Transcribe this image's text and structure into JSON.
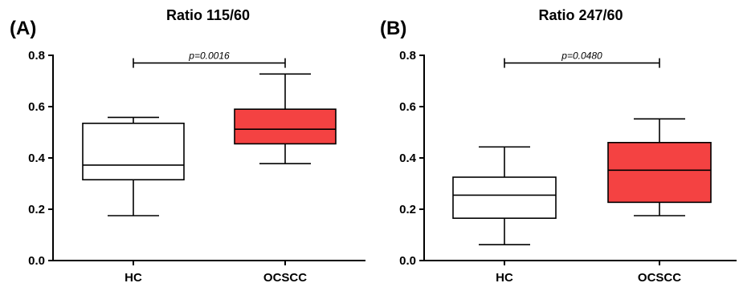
{
  "chart_data": [
    {
      "type": "boxplot",
      "panel_label": "(A)",
      "title": "Ratio 115/60",
      "categories": [
        "HC",
        "OCSCC"
      ],
      "ylim": [
        0,
        0.8
      ],
      "yticks": [
        "0.0",
        "0.2",
        "0.4",
        "0.6",
        "0.8"
      ],
      "boxes": [
        {
          "category": "HC",
          "min": 0.175,
          "q1": 0.315,
          "median": 0.372,
          "q3": 0.535,
          "max": 0.558,
          "color": "#ffffff"
        },
        {
          "category": "OCSCC",
          "min": 0.378,
          "q1": 0.455,
          "median": 0.512,
          "q3": 0.59,
          "max": 0.727,
          "color": "#f44242"
        }
      ],
      "significance": {
        "text": "p=0.0016",
        "y": 0.77
      }
    },
    {
      "type": "boxplot",
      "panel_label": "(B)",
      "title": "Ratio 247/60",
      "categories": [
        "HC",
        "OCSCC"
      ],
      "ylim": [
        0,
        0.8
      ],
      "yticks": [
        "0.0",
        "0.2",
        "0.4",
        "0.6",
        "0.8"
      ],
      "boxes": [
        {
          "category": "HC",
          "min": 0.062,
          "q1": 0.165,
          "median": 0.255,
          "q3": 0.325,
          "max": 0.443,
          "color": "#ffffff"
        },
        {
          "category": "OCSCC",
          "min": 0.175,
          "q1": 0.227,
          "median": 0.352,
          "q3": 0.46,
          "max": 0.552,
          "color": "#f44242"
        }
      ],
      "significance": {
        "text": "p=0.0480",
        "y": 0.77
      }
    }
  ]
}
